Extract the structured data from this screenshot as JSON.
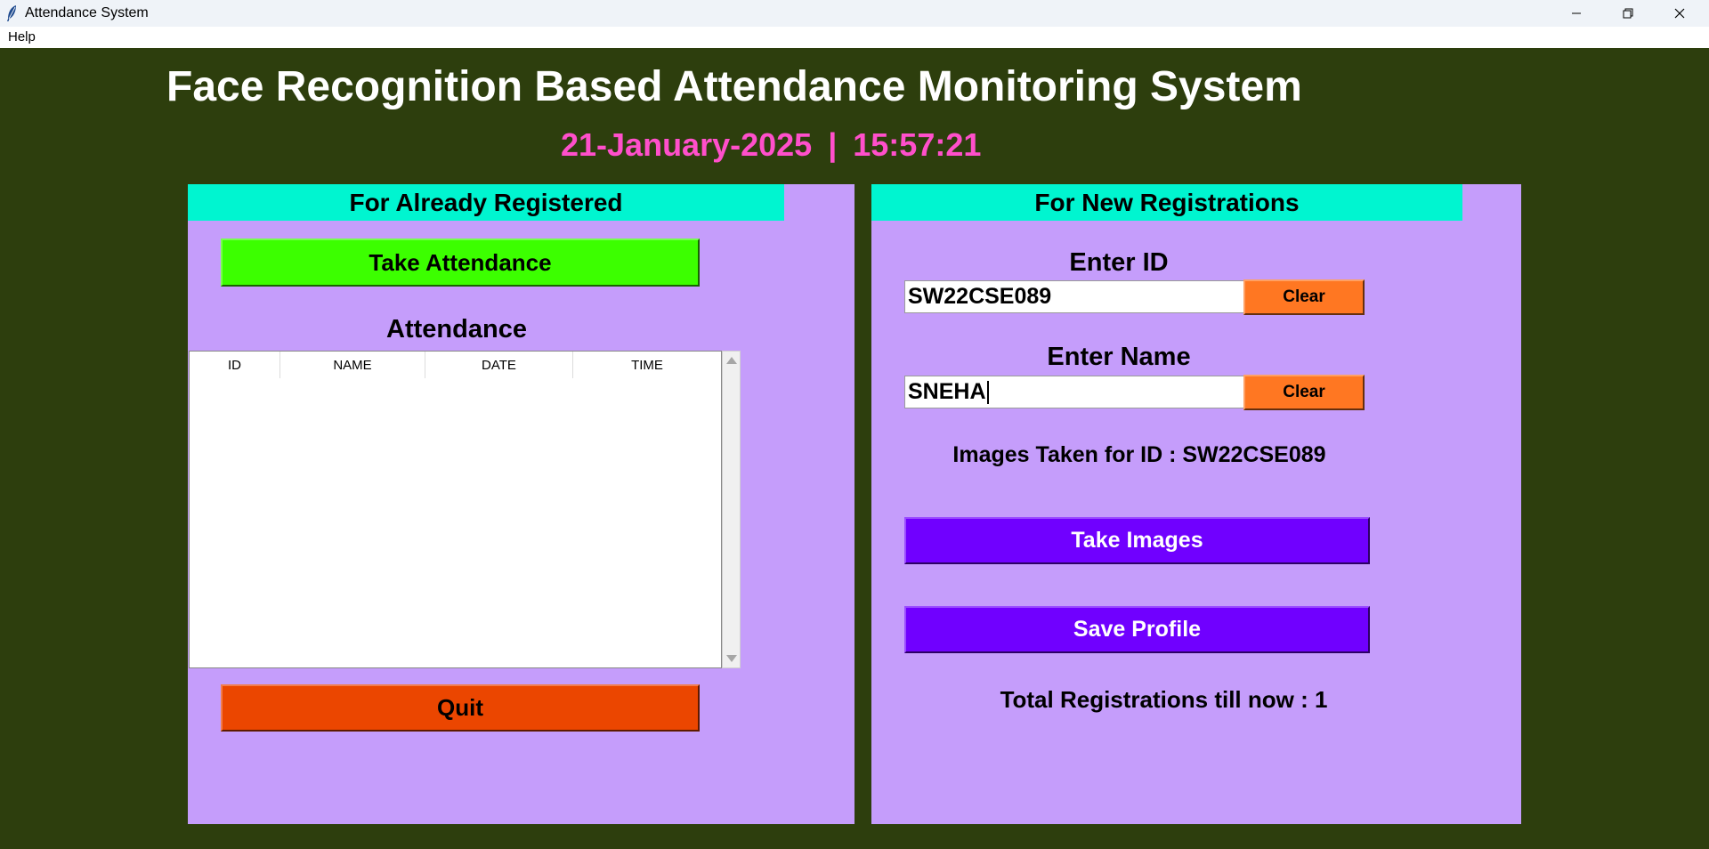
{
  "window": {
    "title": "Attendance System",
    "icon": "feather-icon"
  },
  "menu": {
    "items": [
      "Help"
    ]
  },
  "header": {
    "title": "Face Recognition Based Attendance Monitoring System",
    "date": "21-January-2025",
    "separator": "|",
    "time": "15:57:21"
  },
  "left_panel": {
    "heading": "For Already Registered",
    "take_attendance_label": "Take Attendance",
    "attendance_label": "Attendance",
    "table": {
      "columns": [
        "ID",
        "NAME",
        "DATE",
        "TIME"
      ],
      "rows": []
    },
    "quit_label": "Quit"
  },
  "right_panel": {
    "heading": "For New Registrations",
    "enter_id_label": "Enter ID",
    "id_value": "SW22CSE089",
    "clear_label": "Clear",
    "enter_name_label": "Enter Name",
    "name_value": "SNEHA",
    "images_status": "Images Taken for ID : SW22CSE089",
    "take_images_label": "Take Images",
    "save_profile_label": "Save Profile",
    "total_registrations": "Total Registrations till now  : 1"
  },
  "colors": {
    "background": "#2d3e0d",
    "panel": "#c59dfb",
    "panel_heading": "#00f5d0",
    "datetime": "#ff4fcb",
    "take_attendance": "#3cff00",
    "quit": "#eb4600",
    "clear": "#ff7722",
    "primary_purple": "#7000ff"
  }
}
